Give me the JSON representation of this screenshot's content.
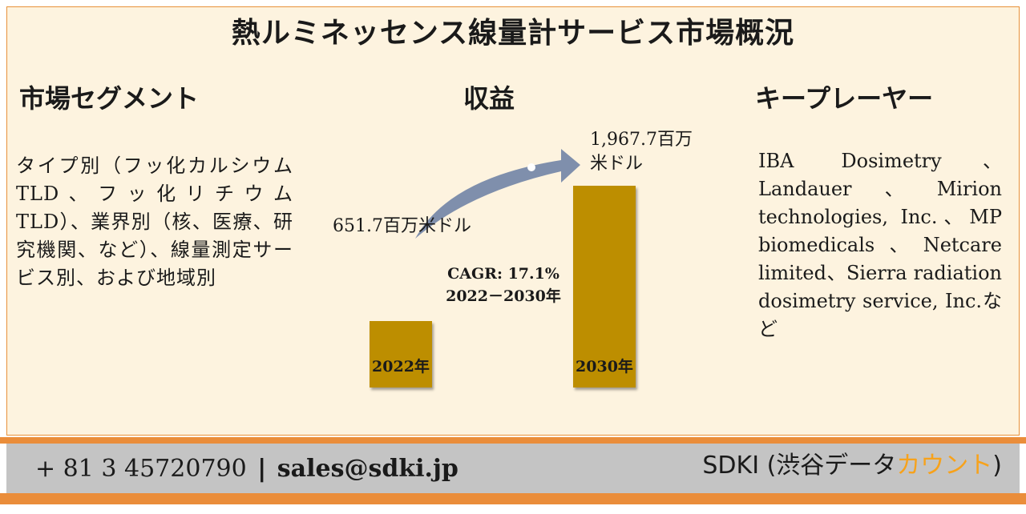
{
  "title": "熱ルミネッセンス線量計サービス市場概況",
  "segment": {
    "heading": "市場セグメント",
    "text": "タイプ別（フッ化カルシウムTLD、フッ化リチウムTLD）、業界別（核、医療、研究機関、など）、線量測定サービス別、および地域別"
  },
  "revenue": {
    "heading": "収益",
    "start_label": "651.7百万米ドル",
    "end_label_line1": "1,967.7百万",
    "end_label_line2": "米ドル",
    "cagr_line1": "CAGR: 17.1%",
    "cagr_line2": "2022－2030年"
  },
  "chart_data": {
    "type": "bar",
    "categories": [
      "2022年",
      "2030年"
    ],
    "values": [
      651.7,
      1967.7
    ],
    "unit": "百万米ドル"
  },
  "players": {
    "heading": "キープレーヤー",
    "text": "IBA Dosimetry、Landauer、Mirion technologies, Inc.、MP biomedicals、Netcare limited、Sierra radiation dosimetry service, Inc.など"
  },
  "footer": {
    "phone": "+ 81 3 45720790",
    "separator": "|",
    "email": "sales@sdki.jp",
    "brand_main": "SDKI (渋谷データ",
    "brand_accent": "カウント",
    "brand_close": ")"
  },
  "colors": {
    "panel_bg": "#fdf3df",
    "border": "#e8913a",
    "bar": "#bd8e00",
    "arrow": "#7f8fac",
    "footer_band": "#ea8d3a",
    "footer_bg": "#c4c4c4",
    "brand_accent": "#f7a21b"
  }
}
